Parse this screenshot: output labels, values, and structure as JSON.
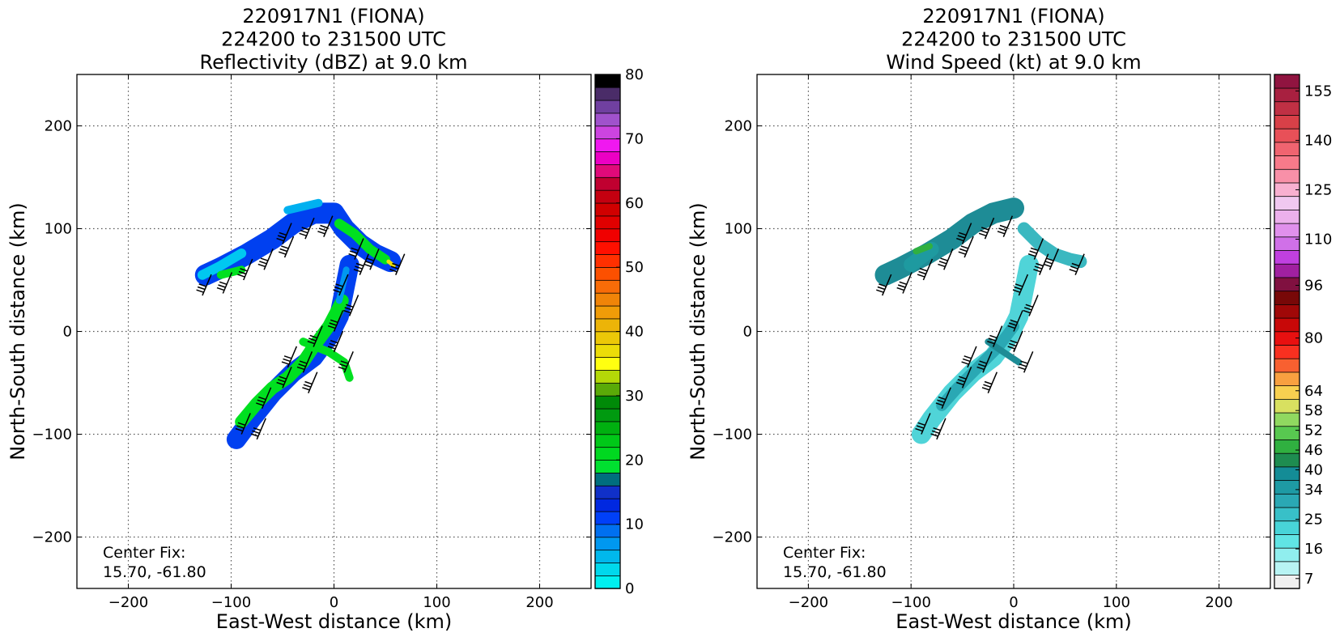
{
  "chart_data": [
    {
      "type": "heatmap",
      "title_lines": [
        "220917N1 (FIONA)",
        "224200 to 231500 UTC",
        "Reflectivity (dBZ) at 9.0 km"
      ],
      "xlabel": "East-West distance (km)",
      "ylabel": "North-South distance (km)",
      "xlim": [
        -250,
        250
      ],
      "ylim": [
        -250,
        250
      ],
      "xticks": [
        -200,
        -100,
        0,
        100,
        200
      ],
      "yticks": [
        -200,
        -100,
        0,
        100,
        200
      ],
      "xtick_labels": [
        "−200",
        "−100",
        "0",
        "100",
        "200"
      ],
      "ytick_labels": [
        "−200",
        "−100",
        "0",
        "100",
        "200"
      ],
      "grid": true,
      "annotation_lines": [
        "Center Fix:",
        "15.70, -61.80"
      ],
      "colorbar": {
        "range": [
          0,
          80
        ],
        "tick_values": [
          0,
          10,
          20,
          30,
          40,
          50,
          60,
          70,
          80
        ],
        "tick_labels": [
          "0",
          "10",
          "20",
          "30",
          "40",
          "50",
          "60",
          "70",
          "80"
        ],
        "colors": [
          "#00f0f0",
          "#00d8ec",
          "#00b8ec",
          "#0098f0",
          "#0070f0",
          "#0040f8",
          "#0028e0",
          "#1030c8",
          "#006e7e",
          "#00e030",
          "#00d820",
          "#00c818",
          "#00b010",
          "#009a10",
          "#008a08",
          "#5aaa08",
          "#b4d808",
          "#ffff10",
          "#ecdc08",
          "#ecc808",
          "#ecb408",
          "#f09c08",
          "#f08408",
          "#f86c08",
          "#fc5000",
          "#ff3000",
          "#ff1000",
          "#f00000",
          "#e00000",
          "#d00000",
          "#c40010",
          "#c00030",
          "#e00a7a",
          "#ec00c4",
          "#f018f0",
          "#cc44e0",
          "#a052cc",
          "#7040a0",
          "#4a2c68",
          "#000000"
        ]
      },
      "series": [
        {
          "name": "",
          "stroke": "#0040f0",
          "width": 26,
          "points": [
            [
              -125,
              55
            ],
            [
              -110,
              62
            ],
            [
              -85,
              75
            ],
            [
              -60,
              90
            ],
            [
              -40,
              105
            ],
            [
              -20,
              115
            ],
            [
              0,
              115
            ],
            [
              10,
              100
            ],
            [
              25,
              85
            ],
            [
              40,
              75
            ],
            [
              55,
              68
            ]
          ]
        },
        {
          "name": "",
          "stroke": "#00c8f0",
          "width": 12,
          "points": [
            [
              -128,
              55
            ],
            [
              -112,
              63
            ],
            [
              -90,
              76
            ]
          ]
        },
        {
          "name": "",
          "stroke": "#00b0f0",
          "width": 10,
          "points": [
            [
              -45,
              118
            ],
            [
              -15,
              125
            ]
          ]
        },
        {
          "name": "",
          "stroke": "#00e020",
          "width": 10,
          "points": [
            [
              -110,
              55
            ],
            [
              -90,
              60
            ]
          ]
        },
        {
          "name": "",
          "stroke": "#00e020",
          "width": 12,
          "points": [
            [
              5,
              105
            ],
            [
              20,
              95
            ],
            [
              35,
              80
            ],
            [
              50,
              70
            ]
          ]
        },
        {
          "name": "",
          "stroke": "#0040f0",
          "width": 24,
          "points": [
            [
              15,
              65
            ],
            [
              10,
              40
            ],
            [
              5,
              15
            ],
            [
              -5,
              -5
            ],
            [
              -20,
              -25
            ],
            [
              -40,
              -40
            ],
            [
              -60,
              -60
            ],
            [
              -80,
              -85
            ],
            [
              -95,
              -105
            ]
          ]
        },
        {
          "name": "",
          "stroke": "#00e020",
          "width": 16,
          "points": [
            [
              8,
              30
            ],
            [
              -5,
              5
            ],
            [
              -20,
              -15
            ],
            [
              -30,
              -30
            ],
            [
              -45,
              -45
            ],
            [
              -60,
              -55
            ],
            [
              -75,
              -70
            ],
            [
              -90,
              -88
            ]
          ]
        },
        {
          "name": "",
          "stroke": "#00e020",
          "width": 10,
          "points": [
            [
              -30,
              -10
            ],
            [
              -5,
              -20
            ],
            [
              10,
              -30
            ],
            [
              15,
              -45
            ]
          ]
        },
        {
          "name": "",
          "stroke": "#0098f0",
          "width": 8,
          "points": [
            [
              12,
              60
            ],
            [
              5,
              30
            ]
          ]
        },
        {
          "name": "",
          "stroke": "#f0e008",
          "width": 5,
          "points": [
            [
              53,
              68
            ],
            [
              58,
              64
            ]
          ]
        }
      ],
      "barbs": [
        [
          -128,
          35
        ],
        [
          -108,
          37
        ],
        [
          -88,
          50
        ],
        [
          -68,
          60
        ],
        [
          -48,
          72
        ],
        [
          -28,
          90
        ],
        [
          -50,
          85
        ],
        [
          -10,
          92
        ],
        [
          20,
          70
        ],
        [
          25,
          55
        ],
        [
          5,
          35
        ],
        [
          15,
          15
        ],
        [
          0,
          0
        ],
        [
          -20,
          -15
        ],
        [
          0,
          -20
        ],
        [
          -30,
          -40
        ],
        [
          -50,
          -55
        ],
        [
          -70,
          -75
        ],
        [
          -90,
          -100
        ],
        [
          -75,
          -105
        ],
        [
          -25,
          -60
        ],
        [
          -45,
          -35
        ],
        [
          10,
          -40
        ],
        [
          60,
          55
        ],
        [
          35,
          60
        ]
      ]
    },
    {
      "type": "heatmap",
      "title_lines": [
        "220917N1 (FIONA)",
        "224200 to 231500 UTC",
        "Wind Speed (kt) at 9.0 km"
      ],
      "xlabel": "East-West distance (km)",
      "ylabel": "North-South distance (km)",
      "xlim": [
        -250,
        250
      ],
      "ylim": [
        -250,
        250
      ],
      "xticks": [
        -200,
        -100,
        0,
        100,
        200
      ],
      "yticks": [
        -200,
        -100,
        0,
        100,
        200
      ],
      "xtick_labels": [
        "−200",
        "−100",
        "0",
        "100",
        "200"
      ],
      "ytick_labels": [
        "−200",
        "−100",
        "0",
        "100",
        "200"
      ],
      "grid": true,
      "annotation_lines": [
        "Center Fix:",
        "15.70, -61.80"
      ],
      "colorbar": {
        "range": [
          4,
          160
        ],
        "tick_values": [
          7,
          16,
          25,
          34,
          40,
          46,
          52,
          58,
          64,
          80,
          96,
          110,
          125,
          140,
          155
        ],
        "tick_labels": [
          "7",
          "16",
          "25",
          "34",
          "40",
          "46",
          "52",
          "58",
          "64",
          "80",
          "96",
          "110",
          "125",
          "140",
          "155"
        ],
        "colors": [
          "#f0f0f0",
          "#b8f4f4",
          "#90eeee",
          "#60e4e4",
          "#48d4d8",
          "#38c0c8",
          "#2aa8b4",
          "#1e9aa4",
          "#148c96",
          "#1e8c50",
          "#30b040",
          "#58c850",
          "#90d860",
          "#d8e060",
          "#f8d050",
          "#f8a040",
          "#f86030",
          "#f83020",
          "#e81010",
          "#c80808",
          "#a00808",
          "#780808",
          "#801040",
          "#a020a0",
          "#c040e0",
          "#d070e8",
          "#e090ec",
          "#ecb0ec",
          "#f0c8f0",
          "#f8b0d0",
          "#f890a8",
          "#f87a8a",
          "#f06470",
          "#e85058",
          "#d84048",
          "#c03044",
          "#a82040",
          "#901440"
        ]
      },
      "series": [
        {
          "name": "",
          "stroke": "#1e8c96",
          "width": 26,
          "points": [
            [
              -125,
              55
            ],
            [
              -110,
              62
            ],
            [
              -85,
              75
            ],
            [
              -60,
              90
            ],
            [
              -40,
              105
            ],
            [
              -20,
              115
            ],
            [
              0,
              120
            ]
          ]
        },
        {
          "name": "",
          "stroke": "#1e9aa0",
          "width": 18,
          "points": [
            [
              -100,
              65
            ],
            [
              -80,
              80
            ]
          ]
        },
        {
          "name": "",
          "stroke": "#30b040",
          "width": 8,
          "points": [
            [
              -95,
              78
            ],
            [
              -82,
              83
            ]
          ]
        },
        {
          "name": "",
          "stroke": "#3ab8c0",
          "width": 16,
          "points": [
            [
              10,
              100
            ],
            [
              25,
              85
            ],
            [
              40,
              75
            ],
            [
              55,
              70
            ],
            [
              65,
              68
            ]
          ]
        },
        {
          "name": "",
          "stroke": "#50d4d8",
          "width": 24,
          "points": [
            [
              15,
              65
            ],
            [
              10,
              40
            ],
            [
              5,
              15
            ],
            [
              -5,
              -5
            ],
            [
              -20,
              -25
            ],
            [
              -40,
              -40
            ],
            [
              -60,
              -60
            ],
            [
              -80,
              -85
            ],
            [
              -90,
              -100
            ]
          ]
        },
        {
          "name": "",
          "stroke": "#2aa8b4",
          "width": 14,
          "points": [
            [
              0,
              5
            ],
            [
              -15,
              -15
            ],
            [
              -35,
              -35
            ],
            [
              -55,
              -55
            ],
            [
              -70,
              -72
            ]
          ]
        },
        {
          "name": "",
          "stroke": "#1e8c96",
          "width": 8,
          "points": [
            [
              -25,
              -10
            ],
            [
              -10,
              -20
            ],
            [
              5,
              -30
            ]
          ]
        }
      ],
      "barbs": [
        [
          -128,
          35
        ],
        [
          -108,
          37
        ],
        [
          -88,
          50
        ],
        [
          -68,
          60
        ],
        [
          -48,
          72
        ],
        [
          -28,
          90
        ],
        [
          -50,
          85
        ],
        [
          -10,
          92
        ],
        [
          20,
          70
        ],
        [
          25,
          55
        ],
        [
          5,
          35
        ],
        [
          15,
          15
        ],
        [
          0,
          0
        ],
        [
          -20,
          -15
        ],
        [
          0,
          -20
        ],
        [
          -30,
          -40
        ],
        [
          -50,
          -55
        ],
        [
          -70,
          -75
        ],
        [
          -90,
          -100
        ],
        [
          -75,
          -105
        ],
        [
          -25,
          -60
        ],
        [
          -45,
          -35
        ],
        [
          10,
          -40
        ],
        [
          60,
          55
        ],
        [
          35,
          60
        ]
      ]
    }
  ]
}
